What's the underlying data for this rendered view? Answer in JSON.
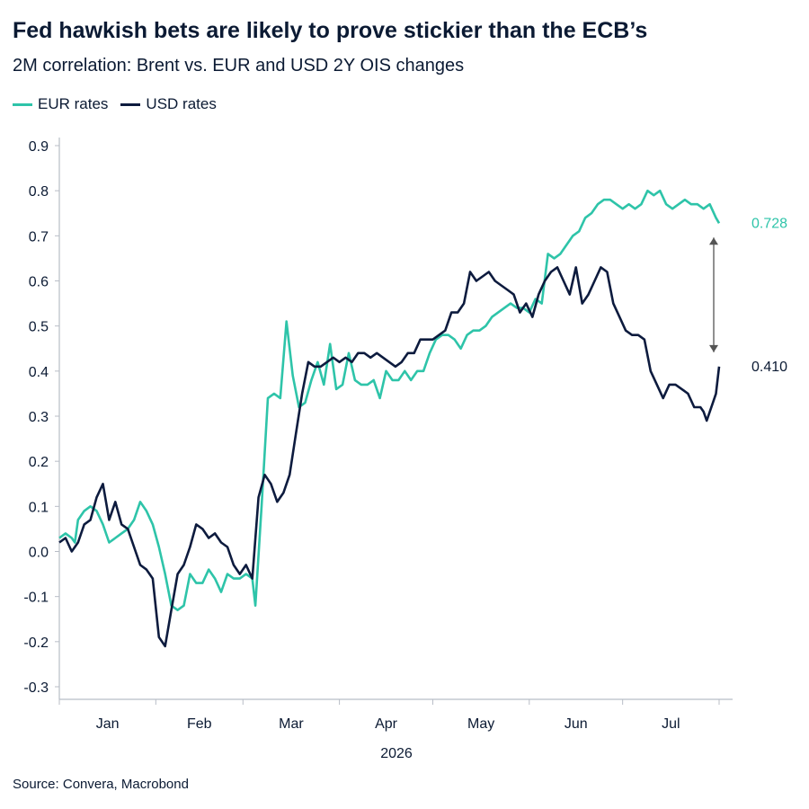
{
  "title": "Fed hawkish bets are likely to prove stickier than the ECB’s",
  "subtitle": "2M correlation: Brent vs. EUR and USD 2Y OIS changes",
  "source": "Source: Convera, Macrobond",
  "colors": {
    "eur": "#2ec4a9",
    "usd": "#0d1b3e",
    "axis": "#b8bdc6",
    "text": "#0b1a33"
  },
  "chart_data": {
    "type": "line",
    "x_axis_label": "2026",
    "x_tick_labels": [
      "Jan",
      "Feb",
      "Mar",
      "Apr",
      "May",
      "Jun",
      "Jul"
    ],
    "x_range_days": [
      0,
      212
    ],
    "y_range": [
      -0.3,
      0.9
    ],
    "y_ticks": [
      -0.3,
      -0.2,
      -0.1,
      0.0,
      0.1,
      0.2,
      0.3,
      0.4,
      0.5,
      0.6,
      0.7,
      0.8,
      0.9
    ],
    "y_tick_labels": [
      "-0.3",
      "-0.2",
      "-0.1",
      "0.0",
      "0.1",
      "0.2",
      "0.3",
      "0.4",
      "0.5",
      "0.6",
      "0.7",
      "0.8",
      "0.9"
    ],
    "legend_position": "top-left",
    "series": [
      {
        "name": "EUR rates",
        "end_label": "0.728",
        "points": [
          [
            0,
            0.03
          ],
          [
            2,
            0.04
          ],
          [
            4,
            0.03
          ],
          [
            5,
            0.02
          ],
          [
            6,
            0.07
          ],
          [
            8,
            0.09
          ],
          [
            10,
            0.1
          ],
          [
            12,
            0.09
          ],
          [
            14,
            0.06
          ],
          [
            16,
            0.02
          ],
          [
            18,
            0.03
          ],
          [
            20,
            0.04
          ],
          [
            22,
            0.05
          ],
          [
            24,
            0.07
          ],
          [
            26,
            0.11
          ],
          [
            28,
            0.09
          ],
          [
            30,
            0.06
          ],
          [
            32,
            0.01
          ],
          [
            34,
            -0.05
          ],
          [
            36,
            -0.12
          ],
          [
            38,
            -0.13
          ],
          [
            40,
            -0.12
          ],
          [
            42,
            -0.05
          ],
          [
            44,
            -0.07
          ],
          [
            46,
            -0.07
          ],
          [
            48,
            -0.04
          ],
          [
            50,
            -0.06
          ],
          [
            52,
            -0.09
          ],
          [
            54,
            -0.05
          ],
          [
            56,
            -0.06
          ],
          [
            58,
            -0.06
          ],
          [
            60,
            -0.05
          ],
          [
            62,
            -0.06
          ],
          [
            63,
            -0.12
          ],
          [
            65,
            0.1
          ],
          [
            67,
            0.34
          ],
          [
            69,
            0.35
          ],
          [
            71,
            0.34
          ],
          [
            73,
            0.51
          ],
          [
            75,
            0.39
          ],
          [
            77,
            0.32
          ],
          [
            79,
            0.33
          ],
          [
            81,
            0.38
          ],
          [
            83,
            0.42
          ],
          [
            85,
            0.37
          ],
          [
            87,
            0.46
          ],
          [
            89,
            0.36
          ],
          [
            91,
            0.37
          ],
          [
            93,
            0.44
          ],
          [
            95,
            0.38
          ],
          [
            97,
            0.37
          ],
          [
            99,
            0.37
          ],
          [
            101,
            0.38
          ],
          [
            103,
            0.34
          ],
          [
            105,
            0.4
          ],
          [
            107,
            0.38
          ],
          [
            109,
            0.38
          ],
          [
            111,
            0.4
          ],
          [
            113,
            0.38
          ],
          [
            115,
            0.4
          ],
          [
            117,
            0.4
          ],
          [
            119,
            0.44
          ],
          [
            121,
            0.47
          ],
          [
            123,
            0.48
          ],
          [
            125,
            0.48
          ],
          [
            127,
            0.47
          ],
          [
            129,
            0.45
          ],
          [
            131,
            0.48
          ],
          [
            133,
            0.49
          ],
          [
            135,
            0.49
          ],
          [
            137,
            0.5
          ],
          [
            139,
            0.52
          ],
          [
            141,
            0.53
          ],
          [
            143,
            0.54
          ],
          [
            145,
            0.55
          ],
          [
            147,
            0.54
          ],
          [
            149,
            0.54
          ],
          [
            151,
            0.53
          ],
          [
            153,
            0.56
          ],
          [
            155,
            0.55
          ],
          [
            157,
            0.66
          ],
          [
            159,
            0.65
          ],
          [
            161,
            0.66
          ],
          [
            163,
            0.68
          ],
          [
            165,
            0.7
          ],
          [
            167,
            0.71
          ],
          [
            169,
            0.74
          ],
          [
            171,
            0.75
          ],
          [
            173,
            0.77
          ],
          [
            175,
            0.78
          ],
          [
            177,
            0.78
          ],
          [
            179,
            0.77
          ],
          [
            181,
            0.76
          ],
          [
            183,
            0.77
          ],
          [
            185,
            0.76
          ],
          [
            187,
            0.77
          ],
          [
            189,
            0.8
          ],
          [
            191,
            0.79
          ],
          [
            193,
            0.8
          ],
          [
            195,
            0.77
          ],
          [
            197,
            0.76
          ],
          [
            199,
            0.77
          ],
          [
            201,
            0.78
          ],
          [
            203,
            0.77
          ],
          [
            205,
            0.77
          ],
          [
            207,
            0.76
          ],
          [
            209,
            0.77
          ],
          [
            211,
            0.74
          ],
          [
            212,
            0.728
          ]
        ]
      },
      {
        "name": "USD rates",
        "end_label": "0.410",
        "points": [
          [
            0,
            0.02
          ],
          [
            2,
            0.03
          ],
          [
            4,
            0.0
          ],
          [
            6,
            0.02
          ],
          [
            8,
            0.06
          ],
          [
            10,
            0.07
          ],
          [
            12,
            0.12
          ],
          [
            14,
            0.15
          ],
          [
            16,
            0.07
          ],
          [
            18,
            0.11
          ],
          [
            20,
            0.06
          ],
          [
            22,
            0.05
          ],
          [
            24,
            0.01
          ],
          [
            26,
            -0.03
          ],
          [
            28,
            -0.04
          ],
          [
            30,
            -0.06
          ],
          [
            32,
            -0.19
          ],
          [
            34,
            -0.21
          ],
          [
            36,
            -0.13
          ],
          [
            38,
            -0.05
          ],
          [
            40,
            -0.03
          ],
          [
            42,
            0.01
          ],
          [
            44,
            0.06
          ],
          [
            46,
            0.05
          ],
          [
            48,
            0.03
          ],
          [
            50,
            0.04
          ],
          [
            52,
            0.02
          ],
          [
            54,
            0.01
          ],
          [
            56,
            -0.03
          ],
          [
            58,
            -0.05
          ],
          [
            60,
            -0.03
          ],
          [
            62,
            -0.06
          ],
          [
            64,
            0.12
          ],
          [
            66,
            0.17
          ],
          [
            68,
            0.15
          ],
          [
            70,
            0.11
          ],
          [
            72,
            0.13
          ],
          [
            74,
            0.17
          ],
          [
            76,
            0.26
          ],
          [
            78,
            0.35
          ],
          [
            80,
            0.42
          ],
          [
            82,
            0.41
          ],
          [
            84,
            0.41
          ],
          [
            86,
            0.42
          ],
          [
            88,
            0.43
          ],
          [
            90,
            0.42
          ],
          [
            92,
            0.43
          ],
          [
            94,
            0.42
          ],
          [
            96,
            0.44
          ],
          [
            98,
            0.44
          ],
          [
            100,
            0.43
          ],
          [
            102,
            0.44
          ],
          [
            104,
            0.43
          ],
          [
            106,
            0.42
          ],
          [
            108,
            0.41
          ],
          [
            110,
            0.42
          ],
          [
            112,
            0.44
          ],
          [
            114,
            0.44
          ],
          [
            116,
            0.47
          ],
          [
            118,
            0.47
          ],
          [
            120,
            0.47
          ],
          [
            122,
            0.48
          ],
          [
            124,
            0.49
          ],
          [
            126,
            0.53
          ],
          [
            128,
            0.53
          ],
          [
            130,
            0.55
          ],
          [
            132,
            0.62
          ],
          [
            134,
            0.6
          ],
          [
            136,
            0.61
          ],
          [
            138,
            0.62
          ],
          [
            140,
            0.6
          ],
          [
            142,
            0.59
          ],
          [
            144,
            0.58
          ],
          [
            146,
            0.57
          ],
          [
            148,
            0.53
          ],
          [
            150,
            0.55
          ],
          [
            152,
            0.52
          ],
          [
            154,
            0.57
          ],
          [
            156,
            0.6
          ],
          [
            158,
            0.62
          ],
          [
            160,
            0.63
          ],
          [
            162,
            0.6
          ],
          [
            164,
            0.57
          ],
          [
            166,
            0.63
          ],
          [
            168,
            0.55
          ],
          [
            170,
            0.57
          ],
          [
            172,
            0.6
          ],
          [
            174,
            0.63
          ],
          [
            176,
            0.62
          ],
          [
            178,
            0.55
          ],
          [
            180,
            0.52
          ],
          [
            182,
            0.49
          ],
          [
            184,
            0.48
          ],
          [
            186,
            0.48
          ],
          [
            188,
            0.47
          ],
          [
            190,
            0.4
          ],
          [
            192,
            0.37
          ],
          [
            194,
            0.34
          ],
          [
            196,
            0.37
          ],
          [
            198,
            0.37
          ],
          [
            200,
            0.36
          ],
          [
            202,
            0.35
          ],
          [
            204,
            0.32
          ],
          [
            206,
            0.32
          ],
          [
            207,
            0.31
          ],
          [
            208,
            0.29
          ],
          [
            210,
            0.33
          ],
          [
            211,
            0.35
          ],
          [
            212,
            0.41
          ]
        ]
      }
    ],
    "annotation": {
      "type": "double-arrow",
      "between": [
        0.728,
        0.41
      ]
    },
    "grid": false
  }
}
